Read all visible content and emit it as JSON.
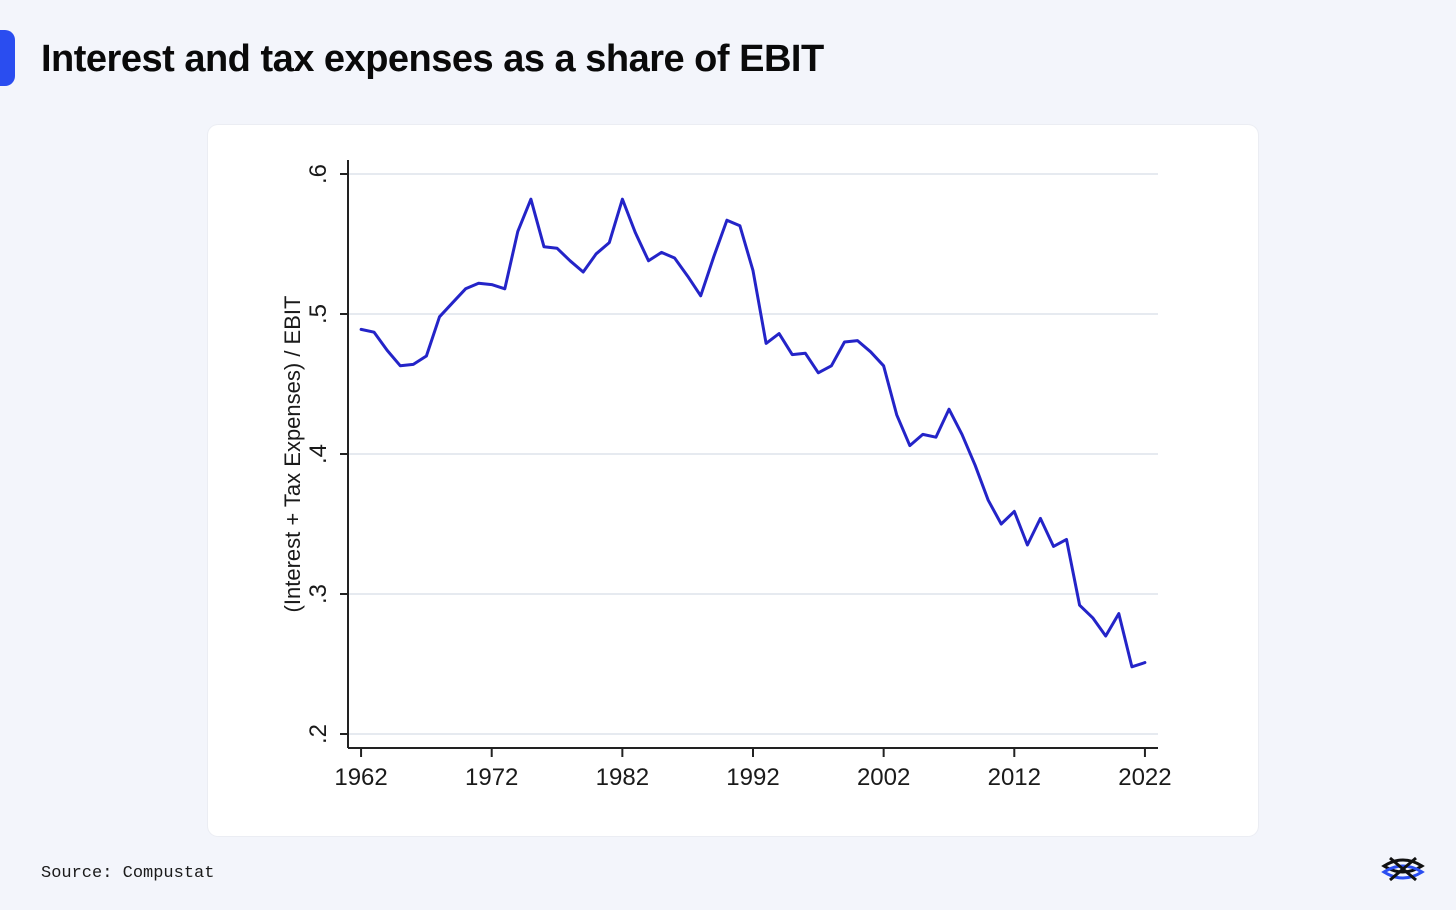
{
  "page": {
    "title": "Interest and tax expenses as a share of EBIT",
    "source": "Source: Compustat",
    "accent_color": "#2a4df0",
    "logo_icon": "interlocked-rings-logo-icon"
  },
  "chart_data": {
    "type": "line",
    "title": "",
    "xlabel": "",
    "ylabel": "(Interest + Tax Expenses) / EBIT",
    "xlim": [
      1961,
      2023
    ],
    "ylim": [
      0.19,
      0.61
    ],
    "x_ticks": [
      1962,
      1972,
      1982,
      1992,
      2002,
      2012,
      2022
    ],
    "x_tick_labels": [
      "1962",
      "1972",
      "1982",
      "1992",
      "2002",
      "2012",
      "2022"
    ],
    "y_ticks": [
      0.2,
      0.3,
      0.4,
      0.5,
      0.6
    ],
    "y_tick_labels": [
      ".2",
      ".3",
      ".4",
      ".5",
      ".6"
    ],
    "grid": "horizontal",
    "series": [
      {
        "color": "#2424c8",
        "x": [
          1962,
          1963,
          1964,
          1965,
          1966,
          1967,
          1968,
          1969,
          1970,
          1971,
          1972,
          1973,
          1974,
          1975,
          1976,
          1977,
          1978,
          1979,
          1980,
          1981,
          1982,
          1983,
          1984,
          1985,
          1986,
          1987,
          1988,
          1989,
          1990,
          1991,
          1992,
          1993,
          1994,
          1995,
          1996,
          1997,
          1998,
          1999,
          2000,
          2001,
          2002,
          2003,
          2004,
          2005,
          2006,
          2007,
          2008,
          2009,
          2010,
          2011,
          2012,
          2013,
          2014,
          2015,
          2016,
          2017,
          2018,
          2019,
          2020,
          2021,
          2022
        ],
        "values": [
          0.489,
          0.487,
          0.474,
          0.463,
          0.464,
          0.47,
          0.498,
          0.508,
          0.518,
          0.522,
          0.521,
          0.518,
          0.559,
          0.582,
          0.548,
          0.547,
          0.538,
          0.53,
          0.543,
          0.551,
          0.582,
          0.558,
          0.538,
          0.544,
          0.54,
          0.527,
          0.513,
          0.541,
          0.567,
          0.563,
          0.531,
          0.479,
          0.486,
          0.471,
          0.472,
          0.458,
          0.463,
          0.48,
          0.481,
          0.473,
          0.463,
          0.428,
          0.406,
          0.414,
          0.412,
          0.432,
          0.414,
          0.392,
          0.367,
          0.35,
          0.359,
          0.335,
          0.354,
          0.334,
          0.339,
          0.292,
          0.283,
          0.27,
          0.286,
          0.248,
          0.251
        ]
      }
    ]
  }
}
